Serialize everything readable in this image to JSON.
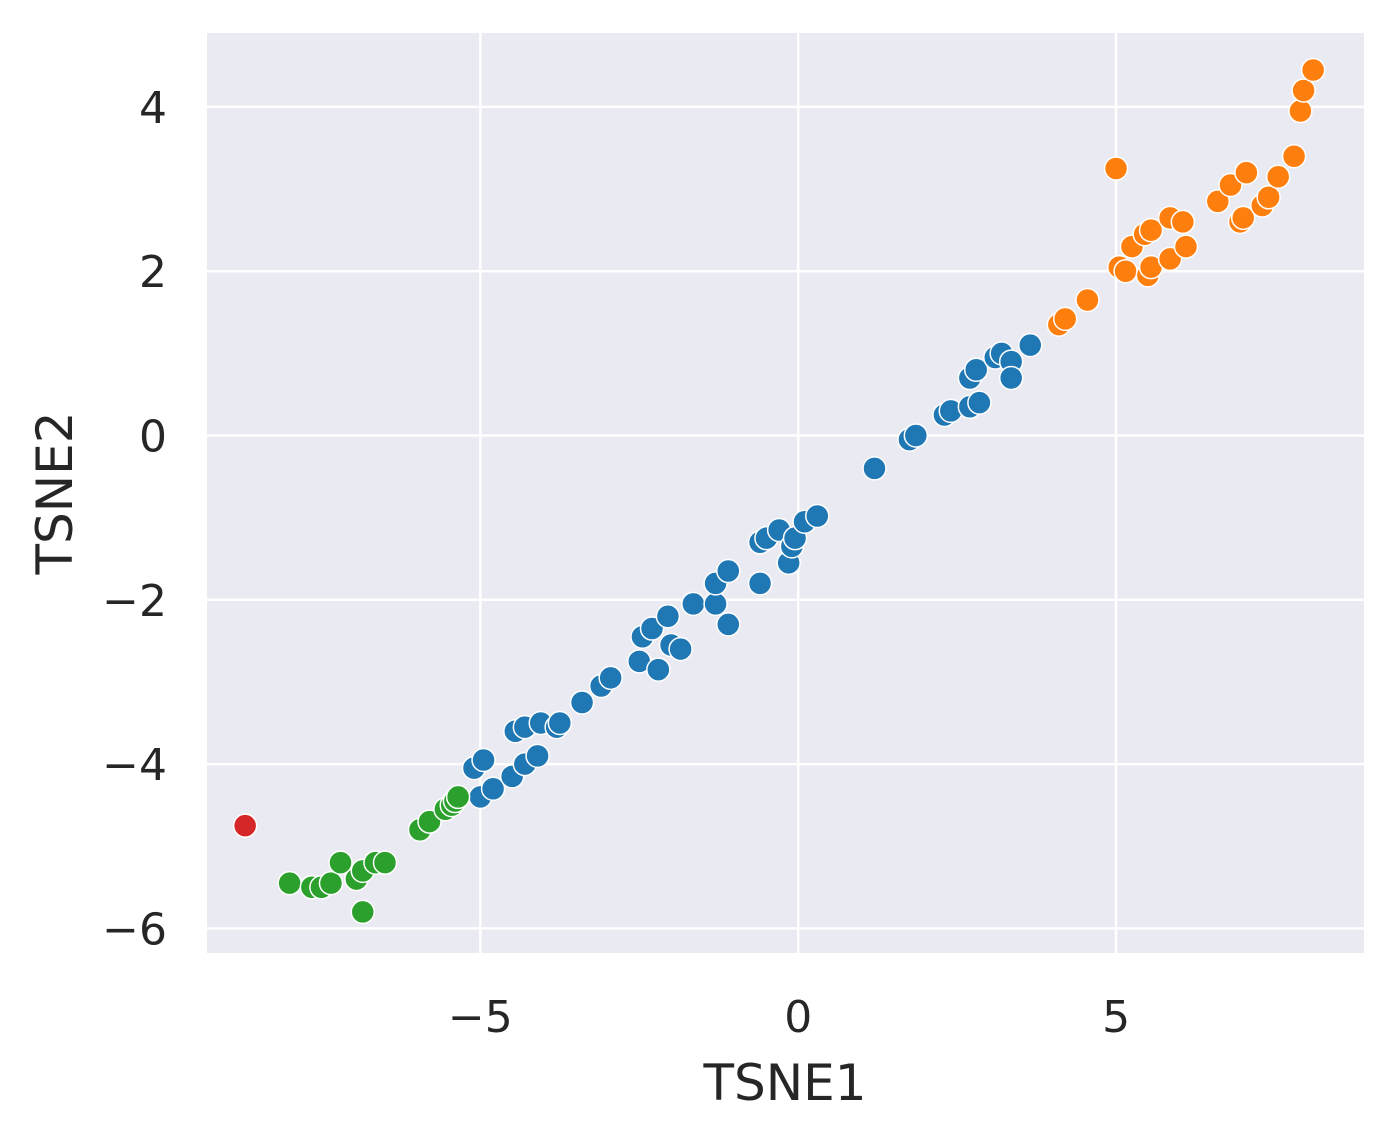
{
  "chart_data": {
    "type": "scatter",
    "title": "",
    "xlabel": "TSNE1",
    "ylabel": "TSNE2",
    "xlim": [
      -9.3,
      8.9
    ],
    "ylim": [
      -6.3,
      4.9
    ],
    "xticks": [
      -5,
      0,
      5
    ],
    "yticks": [
      -6,
      -4,
      -2,
      0,
      2,
      4
    ],
    "xtick_labels": [
      "−5",
      "0",
      "5"
    ],
    "ytick_labels": [
      "−6",
      "−4",
      "−2",
      "0",
      "2",
      "4"
    ],
    "grid": true,
    "legend": "none",
    "series": [
      {
        "color": "#1f77b4",
        "points": [
          [
            -5.0,
            -4.4
          ],
          [
            -4.8,
            -4.3
          ],
          [
            -5.1,
            -4.05
          ],
          [
            -4.95,
            -3.95
          ],
          [
            -4.5,
            -4.15
          ],
          [
            -4.3,
            -4.0
          ],
          [
            -4.1,
            -3.9
          ],
          [
            -4.45,
            -3.6
          ],
          [
            -4.3,
            -3.55
          ],
          [
            -4.05,
            -3.5
          ],
          [
            -3.8,
            -3.55
          ],
          [
            -3.75,
            -3.5
          ],
          [
            -3.4,
            -3.25
          ],
          [
            -3.1,
            -3.05
          ],
          [
            -2.95,
            -2.95
          ],
          [
            -2.5,
            -2.75
          ],
          [
            -2.2,
            -2.85
          ],
          [
            -2.0,
            -2.55
          ],
          [
            -1.85,
            -2.6
          ],
          [
            -2.45,
            -2.45
          ],
          [
            -2.3,
            -2.35
          ],
          [
            -2.05,
            -2.2
          ],
          [
            -1.65,
            -2.05
          ],
          [
            -1.3,
            -2.05
          ],
          [
            -1.3,
            -1.8
          ],
          [
            -1.1,
            -1.65
          ],
          [
            -1.1,
            -2.3
          ],
          [
            -0.6,
            -1.8
          ],
          [
            -0.6,
            -1.3
          ],
          [
            -0.5,
            -1.25
          ],
          [
            -0.3,
            -1.15
          ],
          [
            -0.15,
            -1.55
          ],
          [
            -0.1,
            -1.35
          ],
          [
            -0.05,
            -1.25
          ],
          [
            0.1,
            -1.05
          ],
          [
            0.3,
            -0.98
          ],
          [
            1.2,
            -0.4
          ],
          [
            1.75,
            -0.05
          ],
          [
            1.85,
            0.0
          ],
          [
            2.3,
            0.25
          ],
          [
            2.4,
            0.3
          ],
          [
            2.7,
            0.35
          ],
          [
            2.85,
            0.4
          ],
          [
            2.7,
            0.7
          ],
          [
            2.8,
            0.8
          ],
          [
            3.1,
            0.95
          ],
          [
            3.2,
            1.0
          ],
          [
            3.35,
            0.9
          ],
          [
            3.35,
            0.7
          ],
          [
            3.65,
            1.1
          ]
        ]
      },
      {
        "color": "#ff7f0e",
        "points": [
          [
            4.1,
            1.35
          ],
          [
            4.2,
            1.42
          ],
          [
            4.55,
            1.65
          ],
          [
            5.05,
            2.05
          ],
          [
            5.15,
            2.0
          ],
          [
            5.25,
            2.3
          ],
          [
            5.0,
            3.25
          ],
          [
            5.45,
            2.45
          ],
          [
            5.55,
            2.5
          ],
          [
            5.5,
            1.95
          ],
          [
            5.55,
            2.05
          ],
          [
            5.85,
            2.15
          ],
          [
            5.85,
            2.65
          ],
          [
            6.05,
            2.6
          ],
          [
            6.1,
            2.3
          ],
          [
            6.6,
            2.85
          ],
          [
            6.8,
            3.05
          ],
          [
            7.05,
            3.2
          ],
          [
            6.95,
            2.6
          ],
          [
            7.0,
            2.65
          ],
          [
            7.3,
            2.8
          ],
          [
            7.4,
            2.9
          ],
          [
            7.55,
            3.15
          ],
          [
            7.8,
            3.4
          ],
          [
            7.9,
            3.95
          ],
          [
            7.95,
            4.2
          ],
          [
            8.1,
            4.45
          ]
        ]
      },
      {
        "color": "#2ca02c",
        "points": [
          [
            -8.0,
            -5.45
          ],
          [
            -7.65,
            -5.5
          ],
          [
            -7.5,
            -5.5
          ],
          [
            -7.35,
            -5.45
          ],
          [
            -7.2,
            -5.2
          ],
          [
            -6.95,
            -5.4
          ],
          [
            -6.85,
            -5.3
          ],
          [
            -6.65,
            -5.2
          ],
          [
            -6.5,
            -5.2
          ],
          [
            -6.85,
            -5.8
          ],
          [
            -5.95,
            -4.8
          ],
          [
            -5.8,
            -4.7
          ],
          [
            -5.55,
            -4.55
          ],
          [
            -5.45,
            -4.5
          ],
          [
            -5.4,
            -4.45
          ],
          [
            -5.35,
            -4.4
          ]
        ]
      },
      {
        "color": "#d62728",
        "points": [
          [
            -8.7,
            -4.75
          ]
        ]
      }
    ]
  }
}
